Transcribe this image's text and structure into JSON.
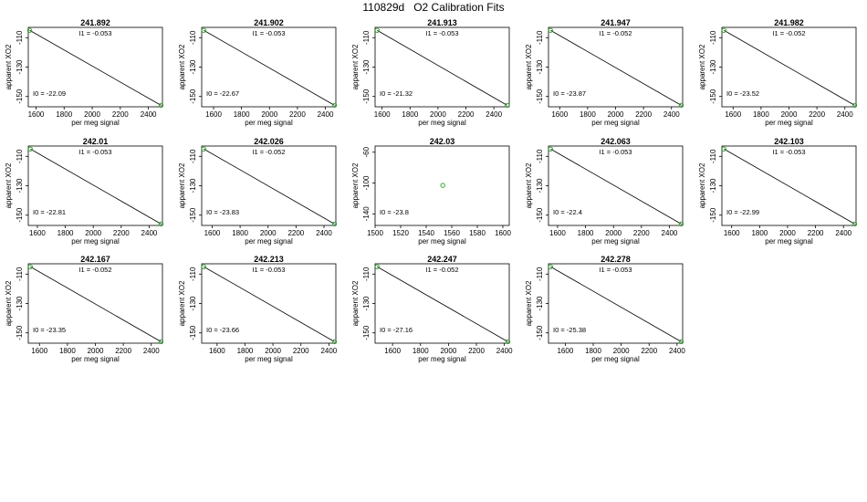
{
  "page": {
    "title": "110829d   O2 Calibration Fits"
  },
  "chart_data": [
    {
      "type": "scatter",
      "title": "241.892",
      "xlabel": "per meg signal",
      "ylabel": "apparent XO2",
      "xlim": [
        1545,
        2500
      ],
      "ylim": [
        -157,
        -103
      ],
      "xticks": [
        1600,
        1800,
        2000,
        2200,
        2400
      ],
      "yticks": [
        -110,
        -130,
        -150
      ],
      "points": [
        {
          "x": 1555,
          "y": -105
        },
        {
          "x": 2490,
          "y": -156
        }
      ],
      "fit": {
        "x1": 1555,
        "y1": -105,
        "x2": 2490,
        "y2": -156
      },
      "annotations": [
        {
          "text": "I1 =  -0.053",
          "pos": "top"
        },
        {
          "text": "I0 =  -22.09",
          "pos": "bottom-left"
        }
      ]
    },
    {
      "type": "scatter",
      "title": "241.902",
      "xlabel": "per meg signal",
      "ylabel": "apparent XO2",
      "xlim": [
        1515,
        2475
      ],
      "ylim": [
        -157,
        -103
      ],
      "xticks": [
        1600,
        1800,
        2000,
        2200,
        2400
      ],
      "yticks": [
        -110,
        -130,
        -150
      ],
      "points": [
        {
          "x": 1530,
          "y": -105
        },
        {
          "x": 2465,
          "y": -156
        }
      ],
      "fit": {
        "x1": 1530,
        "y1": -105,
        "x2": 2465,
        "y2": -156
      },
      "annotations": [
        {
          "text": "I1 =  -0.053",
          "pos": "top"
        },
        {
          "text": "I0 =  -22.67",
          "pos": "bottom-left"
        }
      ]
    },
    {
      "type": "scatter",
      "title": "241.913",
      "xlabel": "per meg signal",
      "ylabel": "apparent XO2",
      "xlim": [
        1550,
        2510
      ],
      "ylim": [
        -157,
        -103
      ],
      "xticks": [
        1600,
        1800,
        2000,
        2200,
        2400
      ],
      "yticks": [
        -110,
        -130,
        -150
      ],
      "points": [
        {
          "x": 1565,
          "y": -105
        },
        {
          "x": 2495,
          "y": -156
        }
      ],
      "fit": {
        "x1": 1565,
        "y1": -105,
        "x2": 2495,
        "y2": -156
      },
      "annotations": [
        {
          "text": "I1 =  -0.053",
          "pos": "top"
        },
        {
          "text": "I0 =  -21.32",
          "pos": "bottom-left"
        }
      ]
    },
    {
      "type": "scatter",
      "title": "241.947",
      "xlabel": "per meg signal",
      "ylabel": "apparent XO2",
      "xlim": [
        1520,
        2480
      ],
      "ylim": [
        -157,
        -103
      ],
      "xticks": [
        1600,
        1800,
        2000,
        2200,
        2400
      ],
      "yticks": [
        -110,
        -130,
        -150
      ],
      "points": [
        {
          "x": 1535,
          "y": -105
        },
        {
          "x": 2470,
          "y": -156
        }
      ],
      "fit": {
        "x1": 1535,
        "y1": -105,
        "x2": 2470,
        "y2": -156
      },
      "annotations": [
        {
          "text": "I1 =  -0.052",
          "pos": "top"
        },
        {
          "text": "I0 =  -23.87",
          "pos": "bottom-left"
        }
      ]
    },
    {
      "type": "scatter",
      "title": "241.982",
      "xlabel": "per meg signal",
      "ylabel": "apparent XO2",
      "xlim": [
        1520,
        2480
      ],
      "ylim": [
        -157,
        -103
      ],
      "xticks": [
        1600,
        1800,
        2000,
        2200,
        2400
      ],
      "yticks": [
        -110,
        -130,
        -150
      ],
      "points": [
        {
          "x": 1535,
          "y": -105
        },
        {
          "x": 2470,
          "y": -156
        }
      ],
      "fit": {
        "x1": 1535,
        "y1": -105,
        "x2": 2470,
        "y2": -156
      },
      "annotations": [
        {
          "text": "I1 =  -0.052",
          "pos": "top"
        },
        {
          "text": "I0 =  -23.52",
          "pos": "bottom-left"
        }
      ]
    },
    {
      "type": "scatter",
      "title": "242.01",
      "xlabel": "per meg signal",
      "ylabel": "apparent XO2",
      "xlim": [
        1535,
        2495
      ],
      "ylim": [
        -157,
        -103
      ],
      "xticks": [
        1600,
        1800,
        2000,
        2200,
        2400
      ],
      "yticks": [
        -110,
        -130,
        -150
      ],
      "points": [
        {
          "x": 1550,
          "y": -105
        },
        {
          "x": 2485,
          "y": -156
        }
      ],
      "fit": {
        "x1": 1550,
        "y1": -105,
        "x2": 2485,
        "y2": -156
      },
      "annotations": [
        {
          "text": "I1 =  -0.053",
          "pos": "top"
        },
        {
          "text": "I0 =  -22.81",
          "pos": "bottom-left"
        }
      ]
    },
    {
      "type": "scatter",
      "title": "242.026",
      "xlabel": "per meg signal",
      "ylabel": "apparent XO2",
      "xlim": [
        1525,
        2485
      ],
      "ylim": [
        -157,
        -103
      ],
      "xticks": [
        1600,
        1800,
        2000,
        2200,
        2400
      ],
      "yticks": [
        -110,
        -130,
        -150
      ],
      "points": [
        {
          "x": 1540,
          "y": -105
        },
        {
          "x": 2475,
          "y": -156
        }
      ],
      "fit": {
        "x1": 1540,
        "y1": -105,
        "x2": 2475,
        "y2": -156
      },
      "annotations": [
        {
          "text": "I1 =  -0.052",
          "pos": "top"
        },
        {
          "text": "I0 =  -23.83",
          "pos": "bottom-left"
        }
      ]
    },
    {
      "type": "scatter",
      "title": "242.03",
      "xlabel": "per meg signal",
      "ylabel": "apparent XO2",
      "xlim": [
        1500,
        1605
      ],
      "ylim": [
        -155,
        -52
      ],
      "xticks": [
        1500,
        1520,
        1540,
        1560,
        1580,
        1600
      ],
      "yticks": [
        -60,
        -100,
        -140
      ],
      "points": [
        {
          "x": 1553,
          "y": -103
        }
      ],
      "fit": null,
      "annotations": [
        {
          "text": "I0 =  -23.8",
          "pos": "bottom-left"
        }
      ]
    },
    {
      "type": "scatter",
      "title": "242.063",
      "xlabel": "per meg signal",
      "ylabel": "apparent XO2",
      "xlim": [
        1535,
        2495
      ],
      "ylim": [
        -157,
        -103
      ],
      "xticks": [
        1600,
        1800,
        2000,
        2200,
        2400
      ],
      "yticks": [
        -110,
        -130,
        -150
      ],
      "points": [
        {
          "x": 1550,
          "y": -105
        },
        {
          "x": 2485,
          "y": -156
        }
      ],
      "fit": {
        "x1": 1550,
        "y1": -105,
        "x2": 2485,
        "y2": -156
      },
      "annotations": [
        {
          "text": "I1 =  -0.053",
          "pos": "top"
        },
        {
          "text": "I0 =  -22.4",
          "pos": "bottom-left"
        }
      ]
    },
    {
      "type": "scatter",
      "title": "242.103",
      "xlabel": "per meg signal",
      "ylabel": "apparent XO2",
      "xlim": [
        1530,
        2490
      ],
      "ylim": [
        -157,
        -103
      ],
      "xticks": [
        1600,
        1800,
        2000,
        2200,
        2400
      ],
      "yticks": [
        -110,
        -130,
        -150
      ],
      "points": [
        {
          "x": 1545,
          "y": -105
        },
        {
          "x": 2480,
          "y": -156
        }
      ],
      "fit": {
        "x1": 1545,
        "y1": -105,
        "x2": 2480,
        "y2": -156
      },
      "annotations": [
        {
          "text": "I1 =  -0.053",
          "pos": "top"
        },
        {
          "text": "I0 =  -22.99",
          "pos": "bottom-left"
        }
      ]
    },
    {
      "type": "scatter",
      "title": "242.167",
      "xlabel": "per meg signal",
      "ylabel": "apparent XO2",
      "xlim": [
        1520,
        2480
      ],
      "ylim": [
        -157,
        -103
      ],
      "xticks": [
        1600,
        1800,
        2000,
        2200,
        2400
      ],
      "yticks": [
        -110,
        -130,
        -150
      ],
      "points": [
        {
          "x": 1535,
          "y": -105
        },
        {
          "x": 2470,
          "y": -156
        }
      ],
      "fit": {
        "x1": 1535,
        "y1": -105,
        "x2": 2470,
        "y2": -156
      },
      "annotations": [
        {
          "text": "I1 =  -0.052",
          "pos": "top"
        },
        {
          "text": "I0 =  -23.35",
          "pos": "bottom-left"
        }
      ]
    },
    {
      "type": "scatter",
      "title": "242.213",
      "xlabel": "per meg signal",
      "ylabel": "apparent XO2",
      "xlim": [
        1490,
        2450
      ],
      "ylim": [
        -157,
        -103
      ],
      "xticks": [
        1600,
        1800,
        2000,
        2200,
        2400
      ],
      "yticks": [
        -110,
        -130,
        -150
      ],
      "points": [
        {
          "x": 1505,
          "y": -105
        },
        {
          "x": 2440,
          "y": -156
        }
      ],
      "fit": {
        "x1": 1505,
        "y1": -105,
        "x2": 2440,
        "y2": -156
      },
      "annotations": [
        {
          "text": "I1 =  -0.053",
          "pos": "top"
        },
        {
          "text": "I0 =  -23.66",
          "pos": "bottom-left"
        }
      ]
    },
    {
      "type": "scatter",
      "title": "242.247",
      "xlabel": "per meg signal",
      "ylabel": "apparent XO2",
      "xlim": [
        1475,
        2435
      ],
      "ylim": [
        -157,
        -103
      ],
      "xticks": [
        1600,
        1800,
        2000,
        2200,
        2400
      ],
      "yticks": [
        -110,
        -130,
        -150
      ],
      "points": [
        {
          "x": 1490,
          "y": -105
        },
        {
          "x": 2425,
          "y": -156
        }
      ],
      "fit": {
        "x1": 1490,
        "y1": -105,
        "x2": 2425,
        "y2": -156
      },
      "annotations": [
        {
          "text": "I1 =  -0.052",
          "pos": "top"
        },
        {
          "text": "I0 =  -27.16",
          "pos": "bottom-left"
        }
      ]
    },
    {
      "type": "scatter",
      "title": "242.278",
      "xlabel": "per meg signal",
      "ylabel": "apparent XO2",
      "xlim": [
        1480,
        2440
      ],
      "ylim": [
        -157,
        -103
      ],
      "xticks": [
        1600,
        1800,
        2000,
        2200,
        2400
      ],
      "yticks": [
        -110,
        -130,
        -150
      ],
      "points": [
        {
          "x": 1495,
          "y": -105
        },
        {
          "x": 2430,
          "y": -156
        }
      ],
      "fit": {
        "x1": 1495,
        "y1": -105,
        "x2": 2430,
        "y2": -156
      },
      "annotations": [
        {
          "text": "I1 =  -0.053",
          "pos": "top"
        },
        {
          "text": "I0 =  -25.38",
          "pos": "bottom-left"
        }
      ]
    }
  ]
}
